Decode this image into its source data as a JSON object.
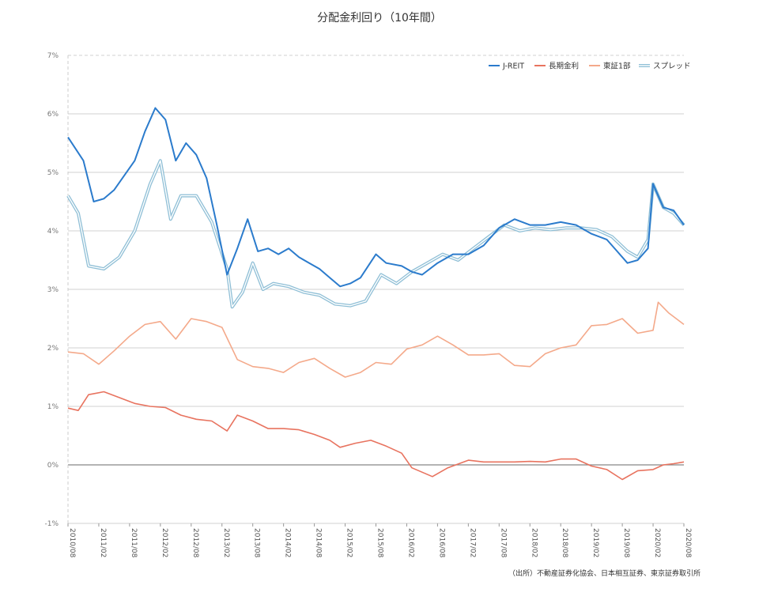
{
  "chart_data": {
    "type": "line",
    "title": "分配金利回り（10年間）",
    "source": "（出所）不動産証券化協会、日本相互証券、東京証券取引所",
    "ylim": [
      -1,
      7
    ],
    "y_ticks": [
      "-1%",
      "0%",
      "1%",
      "2%",
      "3%",
      "4%",
      "5%",
      "6%",
      "7%"
    ],
    "x_ticks": [
      "2010/08",
      "2011/02",
      "2011/08",
      "2012/02",
      "2012/08",
      "2013/02",
      "2013/08",
      "2014/02",
      "2014/08",
      "2015/02",
      "2015/08",
      "2016/02",
      "2016/08",
      "2017/02",
      "2017/08",
      "2018/02",
      "2018/08",
      "2019/02",
      "2019/08",
      "2020/02",
      "2020/08"
    ],
    "x_start": "2010/08",
    "x_end": "2020/08",
    "legend_position": "top-right",
    "grid": true,
    "zero_line": true,
    "series": [
      {
        "name": "J-REIT",
        "color": "#2b7bcc",
        "style": "solid",
        "points": [
          [
            "2010/08",
            5.6
          ],
          [
            "2010/11",
            5.2
          ],
          [
            "2011/01",
            4.5
          ],
          [
            "2011/03",
            4.55
          ],
          [
            "2011/05",
            4.7
          ],
          [
            "2011/07",
            4.95
          ],
          [
            "2011/09",
            5.2
          ],
          [
            "2011/11",
            5.7
          ],
          [
            "2012/01",
            6.1
          ],
          [
            "2012/03",
            5.9
          ],
          [
            "2012/05",
            5.2
          ],
          [
            "2012/07",
            5.5
          ],
          [
            "2012/09",
            5.3
          ],
          [
            "2012/11",
            4.9
          ],
          [
            "2013/01",
            4.1
          ],
          [
            "2013/03",
            3.25
          ],
          [
            "2013/05",
            3.7
          ],
          [
            "2013/07",
            4.2
          ],
          [
            "2013/09",
            3.65
          ],
          [
            "2013/11",
            3.7
          ],
          [
            "2014/01",
            3.6
          ],
          [
            "2014/03",
            3.7
          ],
          [
            "2014/05",
            3.55
          ],
          [
            "2014/07",
            3.45
          ],
          [
            "2014/09",
            3.35
          ],
          [
            "2014/11",
            3.2
          ],
          [
            "2015/01",
            3.05
          ],
          [
            "2015/03",
            3.1
          ],
          [
            "2015/05",
            3.2
          ],
          [
            "2015/08",
            3.6
          ],
          [
            "2015/10",
            3.45
          ],
          [
            "2016/01",
            3.4
          ],
          [
            "2016/03",
            3.3
          ],
          [
            "2016/05",
            3.25
          ],
          [
            "2016/08",
            3.45
          ],
          [
            "2016/11",
            3.6
          ],
          [
            "2017/02",
            3.6
          ],
          [
            "2017/05",
            3.75
          ],
          [
            "2017/08",
            4.05
          ],
          [
            "2017/11",
            4.2
          ],
          [
            "2018/02",
            4.1
          ],
          [
            "2018/05",
            4.1
          ],
          [
            "2018/08",
            4.15
          ],
          [
            "2018/11",
            4.1
          ],
          [
            "2019/02",
            3.95
          ],
          [
            "2019/05",
            3.85
          ],
          [
            "2019/07",
            3.65
          ],
          [
            "2019/09",
            3.45
          ],
          [
            "2019/11",
            3.5
          ],
          [
            "2020/01",
            3.7
          ],
          [
            "2020/02",
            4.8
          ],
          [
            "2020/04",
            4.4
          ],
          [
            "2020/06",
            4.35
          ],
          [
            "2020/08",
            4.1
          ]
        ]
      },
      {
        "name": "長期金利",
        "color": "#e8735f",
        "style": "solid",
        "points": [
          [
            "2010/08",
            0.97
          ],
          [
            "2010/10",
            0.93
          ],
          [
            "2010/12",
            1.2
          ],
          [
            "2011/03",
            1.25
          ],
          [
            "2011/06",
            1.15
          ],
          [
            "2011/09",
            1.05
          ],
          [
            "2011/12",
            1.0
          ],
          [
            "2012/03",
            0.98
          ],
          [
            "2012/06",
            0.85
          ],
          [
            "2012/09",
            0.78
          ],
          [
            "2012/12",
            0.75
          ],
          [
            "2013/03",
            0.58
          ],
          [
            "2013/05",
            0.85
          ],
          [
            "2013/08",
            0.75
          ],
          [
            "2013/11",
            0.62
          ],
          [
            "2014/02",
            0.62
          ],
          [
            "2014/05",
            0.6
          ],
          [
            "2014/08",
            0.52
          ],
          [
            "2014/11",
            0.42
          ],
          [
            "2015/01",
            0.3
          ],
          [
            "2015/04",
            0.37
          ],
          [
            "2015/07",
            0.42
          ],
          [
            "2015/10",
            0.32
          ],
          [
            "2016/01",
            0.2
          ],
          [
            "2016/03",
            -0.05
          ],
          [
            "2016/07",
            -0.2
          ],
          [
            "2016/10",
            -0.05
          ],
          [
            "2017/02",
            0.08
          ],
          [
            "2017/05",
            0.05
          ],
          [
            "2017/08",
            0.05
          ],
          [
            "2017/11",
            0.05
          ],
          [
            "2018/02",
            0.06
          ],
          [
            "2018/05",
            0.05
          ],
          [
            "2018/08",
            0.1
          ],
          [
            "2018/11",
            0.1
          ],
          [
            "2019/02",
            -0.02
          ],
          [
            "2019/05",
            -0.08
          ],
          [
            "2019/08",
            -0.25
          ],
          [
            "2019/11",
            -0.1
          ],
          [
            "2020/02",
            -0.08
          ],
          [
            "2020/04",
            0.0
          ],
          [
            "2020/06",
            0.02
          ],
          [
            "2020/08",
            0.05
          ]
        ]
      },
      {
        "name": "東証1部",
        "color": "#f4a98a",
        "style": "solid",
        "points": [
          [
            "2010/08",
            1.93
          ],
          [
            "2010/11",
            1.9
          ],
          [
            "2011/02",
            1.72
          ],
          [
            "2011/05",
            1.95
          ],
          [
            "2011/08",
            2.2
          ],
          [
            "2011/11",
            2.4
          ],
          [
            "2012/02",
            2.45
          ],
          [
            "2012/05",
            2.15
          ],
          [
            "2012/08",
            2.5
          ],
          [
            "2012/11",
            2.45
          ],
          [
            "2013/02",
            2.35
          ],
          [
            "2013/05",
            1.8
          ],
          [
            "2013/08",
            1.68
          ],
          [
            "2013/11",
            1.65
          ],
          [
            "2014/02",
            1.58
          ],
          [
            "2014/05",
            1.75
          ],
          [
            "2014/08",
            1.82
          ],
          [
            "2014/11",
            1.65
          ],
          [
            "2015/02",
            1.5
          ],
          [
            "2015/05",
            1.58
          ],
          [
            "2015/08",
            1.75
          ],
          [
            "2015/11",
            1.72
          ],
          [
            "2016/02",
            1.98
          ],
          [
            "2016/05",
            2.05
          ],
          [
            "2016/08",
            2.2
          ],
          [
            "2016/11",
            2.05
          ],
          [
            "2017/02",
            1.88
          ],
          [
            "2017/05",
            1.88
          ],
          [
            "2017/08",
            1.9
          ],
          [
            "2017/11",
            1.7
          ],
          [
            "2018/02",
            1.68
          ],
          [
            "2018/05",
            1.9
          ],
          [
            "2018/08",
            2.0
          ],
          [
            "2018/11",
            2.05
          ],
          [
            "2019/02",
            2.38
          ],
          [
            "2019/05",
            2.4
          ],
          [
            "2019/08",
            2.5
          ],
          [
            "2019/11",
            2.25
          ],
          [
            "2020/02",
            2.3
          ],
          [
            "2020/03",
            2.78
          ],
          [
            "2020/05",
            2.6
          ],
          [
            "2020/08",
            2.4
          ]
        ]
      },
      {
        "name": "スプレッド",
        "color": "#8fbfd6",
        "style": "double",
        "points": [
          [
            "2010/08",
            4.6
          ],
          [
            "2010/10",
            4.3
          ],
          [
            "2010/12",
            3.4
          ],
          [
            "2011/03",
            3.35
          ],
          [
            "2011/06",
            3.55
          ],
          [
            "2011/09",
            4.0
          ],
          [
            "2011/12",
            4.8
          ],
          [
            "2012/02",
            5.2
          ],
          [
            "2012/04",
            4.2
          ],
          [
            "2012/06",
            4.6
          ],
          [
            "2012/09",
            4.6
          ],
          [
            "2012/12",
            4.15
          ],
          [
            "2013/03",
            3.35
          ],
          [
            "2013/04",
            2.7
          ],
          [
            "2013/06",
            2.95
          ],
          [
            "2013/08",
            3.45
          ],
          [
            "2013/10",
            3.0
          ],
          [
            "2013/12",
            3.1
          ],
          [
            "2014/03",
            3.05
          ],
          [
            "2014/06",
            2.95
          ],
          [
            "2014/09",
            2.9
          ],
          [
            "2014/12",
            2.75
          ],
          [
            "2015/03",
            2.72
          ],
          [
            "2015/06",
            2.8
          ],
          [
            "2015/09",
            3.25
          ],
          [
            "2015/12",
            3.1
          ],
          [
            "2016/03",
            3.3
          ],
          [
            "2016/06",
            3.45
          ],
          [
            "2016/09",
            3.6
          ],
          [
            "2016/12",
            3.5
          ],
          [
            "2017/03",
            3.7
          ],
          [
            "2017/06",
            3.9
          ],
          [
            "2017/09",
            4.1
          ],
          [
            "2017/12",
            4.0
          ],
          [
            "2018/03",
            4.05
          ],
          [
            "2018/06",
            4.02
          ],
          [
            "2018/09",
            4.05
          ],
          [
            "2018/12",
            4.05
          ],
          [
            "2019/03",
            4.02
          ],
          [
            "2019/06",
            3.9
          ],
          [
            "2019/09",
            3.65
          ],
          [
            "2019/11",
            3.55
          ],
          [
            "2020/01",
            3.85
          ],
          [
            "2020/02",
            4.8
          ],
          [
            "2020/04",
            4.4
          ],
          [
            "2020/06",
            4.3
          ],
          [
            "2020/08",
            4.1
          ]
        ]
      }
    ]
  }
}
